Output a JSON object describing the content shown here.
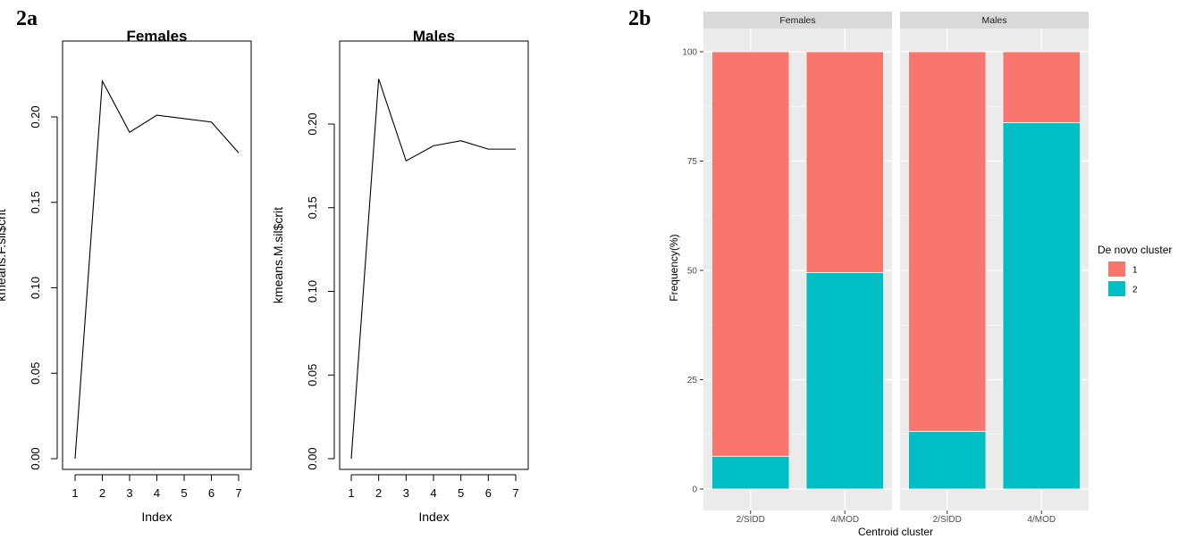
{
  "panel_labels": {
    "a": "2a",
    "b": "2b"
  },
  "colors": {
    "cluster_1": "#F8766D",
    "cluster_2": "#00BFC4",
    "panel_bg": "#EBEBEB",
    "strip_bg": "#D9D9D9",
    "line": "#000000"
  },
  "chart_data": [
    {
      "type": "line",
      "title": "Females",
      "xlabel": "Index",
      "ylabel": "kmeans.F.sil$crit",
      "x": [
        1,
        2,
        3,
        4,
        5,
        6,
        7
      ],
      "y": [
        0.0,
        0.221,
        0.191,
        0.201,
        0.199,
        0.197,
        0.179
      ],
      "ylim": [
        0,
        0.22
      ],
      "xticks": [
        "1",
        "2",
        "3",
        "4",
        "5",
        "6",
        "7"
      ],
      "yticks": [
        "0.00",
        "0.05",
        "0.10",
        "0.15",
        "0.20"
      ]
    },
    {
      "type": "line",
      "title": "Males",
      "xlabel": "Index",
      "ylabel": "kmeans.M.sil$crit",
      "x": [
        1,
        2,
        3,
        4,
        5,
        6,
        7
      ],
      "y": [
        0.0,
        0.227,
        0.178,
        0.187,
        0.19,
        0.185,
        0.185
      ],
      "ylim": [
        0,
        0.225
      ],
      "xticks": [
        "1",
        "2",
        "3",
        "4",
        "5",
        "6",
        "7"
      ],
      "yticks": [
        "0.00",
        "0.05",
        "0.10",
        "0.15",
        "0.20"
      ]
    },
    {
      "type": "bar",
      "stacked": true,
      "xlabel": "Centroid cluster",
      "ylabel": "Frequency(%)",
      "ylim": [
        0,
        100
      ],
      "yticks": [
        "0",
        "25",
        "50",
        "75",
        "100"
      ],
      "legend_title": "De novo cluster",
      "legend_position": "right",
      "legend": [
        "1",
        "2"
      ],
      "facets": [
        {
          "name": "Females",
          "categories": [
            "2/SIDD",
            "4/MOD"
          ],
          "series": [
            {
              "name": "1",
              "values": [
                92.5,
                50.5
              ]
            },
            {
              "name": "2",
              "values": [
                7.5,
                49.5
              ]
            }
          ]
        },
        {
          "name": "Males",
          "categories": [
            "2/SIDD",
            "4/MOD"
          ],
          "series": [
            {
              "name": "1",
              "values": [
                86.8,
                16.2
              ]
            },
            {
              "name": "2",
              "values": [
                13.2,
                83.8
              ]
            }
          ]
        }
      ]
    }
  ]
}
